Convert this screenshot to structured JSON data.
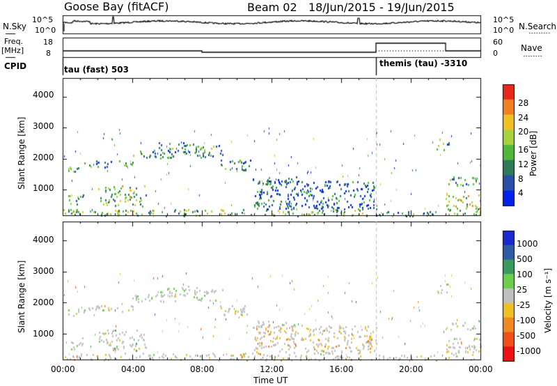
{
  "header": {
    "station": "Goose Bay (fitACF)",
    "beam": "Beam 02",
    "date_range": "18/Jun/2015 - 19/Jun/2015"
  },
  "params": {
    "nsky_label": "N.Sky",
    "nsearch_label": "N.Search",
    "freq_label": "Freq.",
    "freq_unit": "[MHz]",
    "nave_label": "Nave",
    "cpid_label": "CPID",
    "noise_ticks": [
      "10^5",
      "10^0"
    ],
    "freq_ticks": [
      "18",
      "8"
    ],
    "nave_ticks": [
      "60",
      "0"
    ],
    "cpid_segments": [
      {
        "label": "tau (fast) 503",
        "start_hour": 0
      },
      {
        "label": "themis (tau) -3310",
        "start_hour": 18.0
      }
    ]
  },
  "chart_data": [
    {
      "type": "heatmap",
      "title": "",
      "ylabel": "Slant Range [km]",
      "xlabel": "",
      "yticks": [
        1000,
        2000,
        3000,
        4000
      ],
      "ylim": [
        180,
        4600
      ],
      "xlim_hours": [
        0,
        24
      ],
      "colorbar": {
        "label": "Power [dB]",
        "ticks": [
          4,
          8,
          12,
          16,
          20,
          24,
          28
        ],
        "range": [
          0,
          32
        ],
        "colors": [
          "#0022ee",
          "#2a4fa8",
          "#2e7a58",
          "#4fb83a",
          "#a8d23c",
          "#f0c020",
          "#f08020",
          "#e82818"
        ]
      },
      "regions": [
        {
          "t0": 0.3,
          "t1": 1.3,
          "r0": 1600,
          "r1": 1850,
          "level": 0.35
        },
        {
          "t0": 1.2,
          "t1": 4.0,
          "r0": 1750,
          "r1": 1950,
          "level": 0.3
        },
        {
          "t0": 4.0,
          "t1": 6.6,
          "r0": 2050,
          "r1": 2300,
          "level": 0.3
        },
        {
          "t0": 5.5,
          "t1": 7.8,
          "r0": 2200,
          "r1": 2550,
          "level": 0.3
        },
        {
          "t0": 7.5,
          "t1": 9.2,
          "r0": 2050,
          "r1": 2450,
          "level": 0.3
        },
        {
          "t0": 9.0,
          "t1": 10.8,
          "r0": 1600,
          "r1": 2000,
          "level": 0.3
        },
        {
          "t0": 10.8,
          "t1": 13.5,
          "r0": 1200,
          "r1": 1450,
          "level": 0.3
        },
        {
          "t0": 0.3,
          "t1": 1.2,
          "r0": 500,
          "r1": 900,
          "level": 0.4
        },
        {
          "t0": 2.0,
          "t1": 4.8,
          "r0": 500,
          "r1": 1150,
          "level": 0.5
        },
        {
          "t0": 0.0,
          "t1": 18.0,
          "r0": 180,
          "r1": 400,
          "level": 0.45
        },
        {
          "t0": 11.0,
          "t1": 18.0,
          "r0": 400,
          "r1": 1300,
          "level": 0.2
        },
        {
          "t0": 18.0,
          "t1": 21.5,
          "r0": 180,
          "r1": 350,
          "level": 0.3
        },
        {
          "t0": 21.4,
          "t1": 22.2,
          "r0": 2300,
          "r1": 2650,
          "level": 0.35
        },
        {
          "t0": 22.0,
          "t1": 24.0,
          "r0": 1150,
          "r1": 1450,
          "level": 0.35
        },
        {
          "t0": 22.0,
          "t1": 24.0,
          "r0": 200,
          "r1": 900,
          "level": 0.6
        }
      ]
    },
    {
      "type": "heatmap",
      "title": "",
      "ylabel": "Slant Range [km]",
      "xlabel": "Time UT",
      "yticks": [
        1000,
        2000,
        3000,
        4000
      ],
      "ylim": [
        180,
        4600
      ],
      "xlim_hours": [
        0,
        24
      ],
      "xticks": [
        "00:00",
        "04:00",
        "08:00",
        "12:00",
        "16:00",
        "20:00",
        "00:00"
      ],
      "colorbar": {
        "label": "Velocity [m s⁻¹]",
        "ticks": [
          "1000",
          "500",
          "100",
          "25",
          "-25",
          "-100",
          "-500",
          "-1000"
        ],
        "range": [
          -1200,
          1200
        ],
        "colors": [
          "#ee1010",
          "#f05018",
          "#f08a20",
          "#f0c020",
          "#c0c0c0",
          "#6ad04a",
          "#3a9a60",
          "#2e5aa8",
          "#1a2ad0"
        ]
      },
      "regions": [
        {
          "t0": 0.3,
          "t1": 1.3,
          "r0": 1600,
          "r1": 1850,
          "level": 0.0
        },
        {
          "t0": 1.2,
          "t1": 4.0,
          "r0": 1750,
          "r1": 1950,
          "level": 0.0
        },
        {
          "t0": 4.0,
          "t1": 6.6,
          "r0": 2050,
          "r1": 2300,
          "level": 0.0
        },
        {
          "t0": 5.5,
          "t1": 7.8,
          "r0": 2200,
          "r1": 2550,
          "level": 0.0
        },
        {
          "t0": 7.5,
          "t1": 9.2,
          "r0": 2050,
          "r1": 2450,
          "level": 0.05
        },
        {
          "t0": 9.0,
          "t1": 10.8,
          "r0": 1600,
          "r1": 2000,
          "level": 0.0
        },
        {
          "t0": 10.8,
          "t1": 13.5,
          "r0": 1200,
          "r1": 1450,
          "level": 0.0
        },
        {
          "t0": 0.3,
          "t1": 1.2,
          "r0": 500,
          "r1": 900,
          "level": 0.0
        },
        {
          "t0": 2.0,
          "t1": 4.8,
          "r0": 500,
          "r1": 1150,
          "level": 0.1
        },
        {
          "t0": 0.0,
          "t1": 18.0,
          "r0": 180,
          "r1": 400,
          "level": -0.1
        },
        {
          "t0": 11.0,
          "t1": 18.0,
          "r0": 400,
          "r1": 1300,
          "level": -0.2
        },
        {
          "t0": 18.0,
          "t1": 21.5,
          "r0": 180,
          "r1": 350,
          "level": 0.0
        },
        {
          "t0": 21.4,
          "t1": 22.2,
          "r0": 2300,
          "r1": 2650,
          "level": 0.0
        },
        {
          "t0": 22.0,
          "t1": 24.0,
          "r0": 1150,
          "r1": 1450,
          "level": 0.0
        },
        {
          "t0": 22.0,
          "t1": 24.0,
          "r0": 200,
          "r1": 900,
          "level": 0.0
        }
      ]
    }
  ]
}
